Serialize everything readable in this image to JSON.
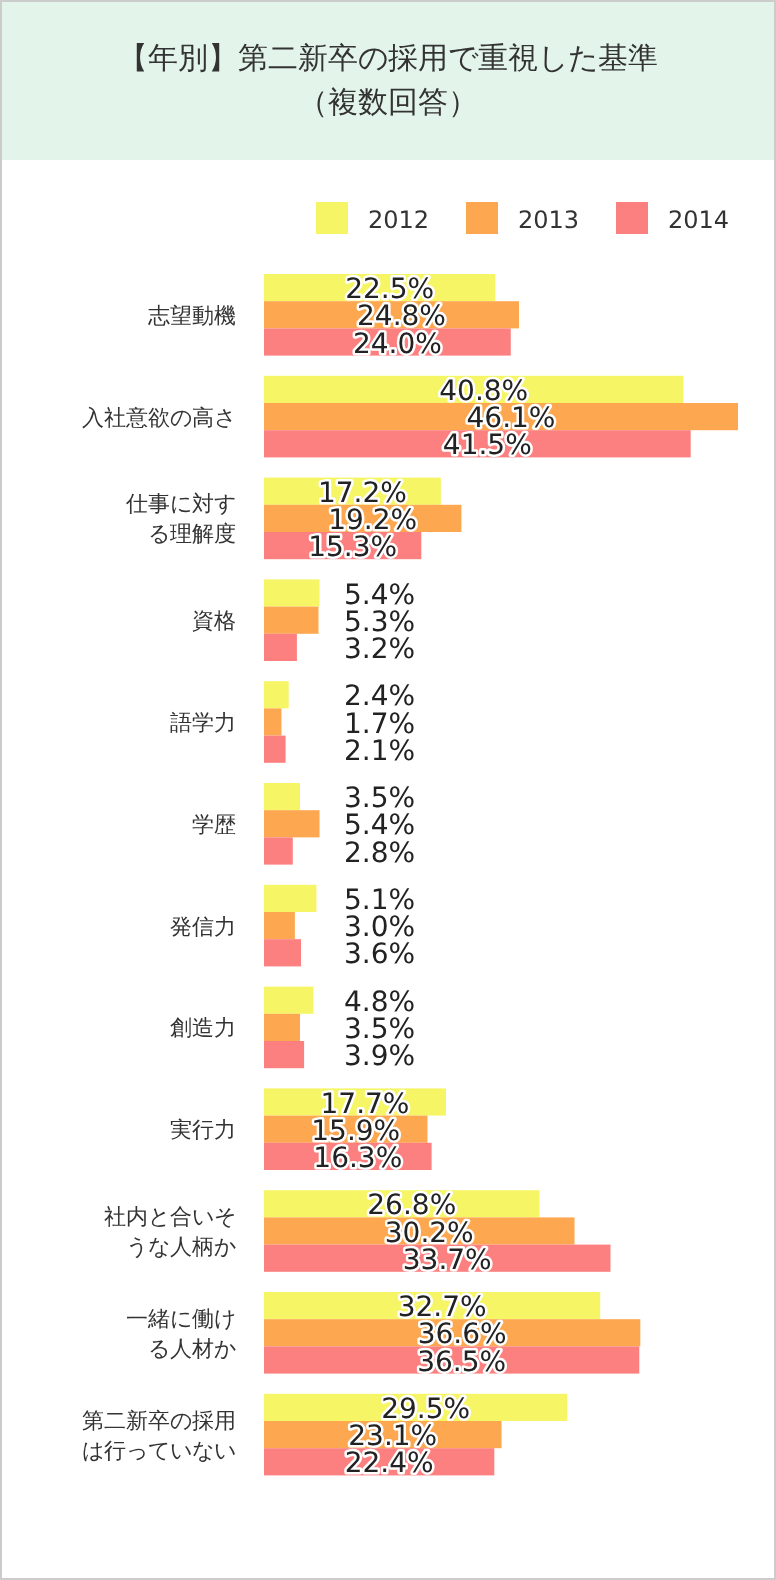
{
  "chart_data": {
    "type": "bar",
    "orientation": "horizontal",
    "title": "【年別】第二新卒の採用で重視した基準（複数回答）",
    "legend": "top",
    "categories": [
      "志望動機",
      "入社意欲の高さ",
      "仕事に対する理解度",
      "資格",
      "語学力",
      "学歴",
      "発信力",
      "創造力",
      "実行力",
      "社内と合いそうな人柄か",
      "一緒に働ける人材か",
      "第二新卒の採用は行っていない"
    ],
    "series": [
      {
        "name": "2012",
        "color": "#f5f566",
        "values": [
          22.5,
          40.8,
          17.2,
          5.4,
          2.4,
          3.5,
          5.1,
          4.8,
          17.7,
          26.8,
          32.7,
          29.5
        ],
        "value_labels": [
          "22.5%",
          "40.8%",
          "17.2%",
          "5.4%",
          "2.4%",
          "3.5%",
          "5.1%",
          "4.8%",
          "17.7%",
          "26.8%",
          "32.7%",
          "29.5%"
        ]
      },
      {
        "name": "2013",
        "color": "#fda750",
        "values": [
          24.8,
          46.1,
          19.2,
          5.3,
          1.7,
          5.4,
          3.0,
          3.5,
          15.9,
          30.2,
          36.6,
          23.1
        ],
        "value_labels": [
          "24.8%",
          "46.1%",
          "19.2%",
          "5.3%",
          "1.7%",
          "5.4%",
          "3.0%",
          "3.5%",
          "15.9%",
          "30.2%",
          "36.6%",
          "23.1%"
        ]
      },
      {
        "name": "2014",
        "color": "#fd8080",
        "values": [
          24.0,
          41.5,
          15.3,
          3.2,
          2.1,
          2.8,
          3.6,
          3.9,
          16.3,
          33.7,
          36.5,
          22.4
        ],
        "value_labels": [
          "24.0%",
          "41.5%",
          "15.3%",
          "3.2%",
          "2.1%",
          "2.8%",
          "3.6%",
          "3.9%",
          "16.3%",
          "33.7%",
          "36.5%",
          "22.4%"
        ]
      }
    ]
  }
}
